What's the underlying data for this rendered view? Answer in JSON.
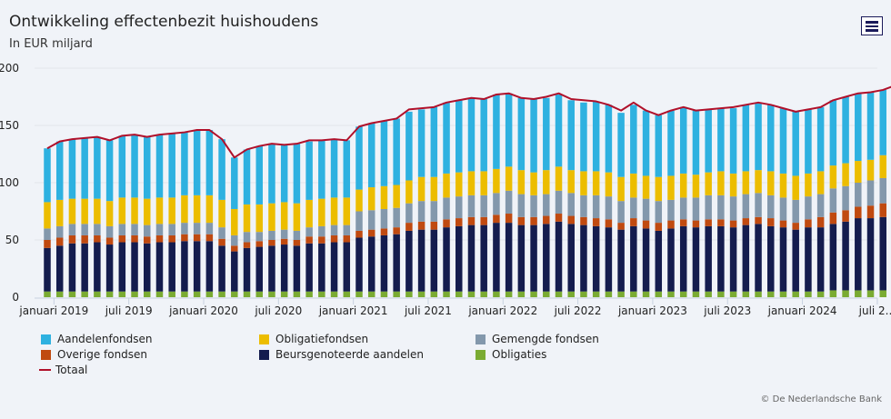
{
  "header": {
    "title": "Ontwikkeling effectenbezit huishoudens",
    "subtitle": "In EUR miljard",
    "menu_icon": "hamburger-menu-icon"
  },
  "credit": "© De Nederlandsche Bank",
  "chart_data": {
    "type": "bar",
    "stacked": true,
    "title": "Ontwikkeling effectenbezit huishoudens",
    "subtitle": "In EUR miljard",
    "xlabel": "",
    "ylabel": "",
    "ylim": [
      0,
      200
    ],
    "yticks": [
      0,
      50,
      100,
      150,
      200
    ],
    "grid": true,
    "legend_position": "bottom",
    "x_tick_labels": [
      "januari 2019",
      "juli 2019",
      "januari 2020",
      "juli 2020",
      "januari 2021",
      "juli 2021",
      "januari 2022",
      "juli 2022",
      "januari 2023",
      "juli 2023",
      "januari 2024",
      "juli 2..."
    ],
    "x_tick_index": [
      1,
      7,
      13,
      19,
      25,
      31,
      37,
      43,
      49,
      55,
      61,
      67
    ],
    "categories": [
      "2018-12",
      "2019-01",
      "2019-02",
      "2019-03",
      "2019-04",
      "2019-05",
      "2019-06",
      "2019-07",
      "2019-08",
      "2019-09",
      "2019-10",
      "2019-11",
      "2019-12",
      "2020-01",
      "2020-02",
      "2020-03",
      "2020-04",
      "2020-05",
      "2020-06",
      "2020-07",
      "2020-08",
      "2020-09",
      "2020-10",
      "2020-11",
      "2020-12",
      "2021-01",
      "2021-02",
      "2021-03",
      "2021-04",
      "2021-05",
      "2021-06",
      "2021-07",
      "2021-08",
      "2021-09",
      "2021-10",
      "2021-11",
      "2021-12",
      "2022-01",
      "2022-02",
      "2022-03",
      "2022-04",
      "2022-05",
      "2022-06",
      "2022-07",
      "2022-08",
      "2022-09",
      "2022-10",
      "2022-11",
      "2022-12",
      "2023-01",
      "2023-02",
      "2023-03",
      "2023-04",
      "2023-05",
      "2023-06",
      "2023-07",
      "2023-08",
      "2023-09",
      "2023-10",
      "2023-11",
      "2023-12",
      "2024-01",
      "2024-02",
      "2024-03",
      "2024-04",
      "2024-05",
      "2024-06",
      "2024-07",
      "2024-08"
    ],
    "series": [
      {
        "name": "Obligaties",
        "color": "#7aab32",
        "values": [
          5,
          5,
          5,
          5,
          5,
          5,
          5,
          5,
          5,
          5,
          5,
          5,
          5,
          5,
          5,
          5,
          5,
          5,
          5,
          5,
          5,
          5,
          5,
          5,
          5,
          5,
          5,
          5,
          5,
          5,
          5,
          5,
          5,
          5,
          5,
          5,
          5,
          5,
          5,
          5,
          5,
          5,
          5,
          5,
          5,
          5,
          5,
          5,
          5,
          5,
          5,
          5,
          5,
          5,
          5,
          5,
          5,
          5,
          5,
          5,
          5,
          5,
          5,
          6,
          6,
          6,
          6,
          6,
          7
        ]
      },
      {
        "name": "Beursgenoteerde aandelen",
        "color": "#141c4e",
        "values": [
          38,
          40,
          42,
          42,
          43,
          41,
          43,
          43,
          42,
          43,
          43,
          44,
          44,
          44,
          40,
          35,
          38,
          39,
          40,
          41,
          40,
          42,
          42,
          43,
          43,
          47,
          48,
          49,
          50,
          53,
          54,
          54,
          56,
          57,
          58,
          58,
          60,
          60,
          58,
          58,
          59,
          61,
          59,
          58,
          57,
          56,
          54,
          57,
          55,
          53,
          55,
          57,
          56,
          57,
          57,
          56,
          58,
          59,
          57,
          56,
          54,
          56,
          56,
          58,
          60,
          63,
          63,
          64,
          64
        ]
      },
      {
        "name": "Overige fondsen",
        "color": "#c04a10",
        "values": [
          7,
          7,
          7,
          7,
          6,
          6,
          6,
          6,
          6,
          6,
          6,
          6,
          6,
          6,
          6,
          5,
          5,
          5,
          5,
          5,
          5,
          6,
          6,
          6,
          6,
          6,
          6,
          6,
          6,
          7,
          7,
          7,
          7,
          7,
          7,
          7,
          7,
          8,
          7,
          7,
          7,
          7,
          7,
          7,
          7,
          7,
          6,
          7,
          7,
          7,
          7,
          6,
          6,
          6,
          6,
          6,
          6,
          6,
          7,
          6,
          6,
          7,
          9,
          10,
          10,
          10,
          11,
          12,
          12
        ]
      },
      {
        "name": "Gemengde fondsen",
        "color": "#8398ac",
        "values": [
          10,
          10,
          10,
          10,
          10,
          10,
          10,
          10,
          10,
          10,
          10,
          10,
          10,
          10,
          10,
          9,
          9,
          8,
          8,
          8,
          8,
          8,
          9,
          9,
          9,
          17,
          17,
          17,
          17,
          17,
          18,
          18,
          19,
          19,
          19,
          19,
          19,
          20,
          20,
          19,
          19,
          20,
          20,
          19,
          20,
          20,
          19,
          18,
          19,
          19,
          18,
          19,
          20,
          21,
          21,
          21,
          21,
          21,
          20,
          20,
          20,
          20,
          20,
          21,
          21,
          21,
          22,
          22,
          22
        ]
      },
      {
        "name": "Obligatiefondsen",
        "color": "#ecbd00",
        "values": [
          23,
          23,
          22,
          22,
          22,
          22,
          23,
          23,
          23,
          23,
          23,
          24,
          24,
          24,
          24,
          23,
          24,
          24,
          24,
          24,
          24,
          24,
          24,
          24,
          24,
          19,
          20,
          20,
          20,
          20,
          21,
          21,
          21,
          21,
          21,
          21,
          21,
          21,
          21,
          20,
          21,
          21,
          20,
          21,
          21,
          21,
          21,
          21,
          20,
          21,
          21,
          21,
          20,
          20,
          21,
          20,
          20,
          20,
          21,
          21,
          21,
          20,
          20,
          20,
          20,
          19,
          18,
          20,
          20
        ]
      },
      {
        "name": "Aandelenfondsen",
        "color": "#2eb1e0",
        "values": [
          47,
          51,
          52,
          53,
          54,
          53,
          54,
          55,
          54,
          55,
          56,
          55,
          57,
          57,
          53,
          45,
          48,
          51,
          52,
          50,
          52,
          51,
          51,
          51,
          50,
          55,
          56,
          57,
          58,
          60,
          59,
          61,
          62,
          63,
          64,
          63,
          65,
          64,
          63,
          64,
          63,
          63,
          61,
          60,
          61,
          59,
          56,
          60,
          57,
          54,
          57,
          58,
          56,
          55,
          55,
          57,
          58,
          59,
          58,
          57,
          56,
          56,
          56,
          57,
          58,
          59,
          59,
          57,
          60
        ]
      },
      {
        "name": "Totaal",
        "type": "line",
        "color": "#b0102a",
        "values": [
          130,
          136,
          138,
          139,
          140,
          137,
          141,
          142,
          140,
          142,
          143,
          144,
          146,
          146,
          138,
          122,
          129,
          132,
          134,
          133,
          134,
          137,
          137,
          138,
          137,
          149,
          152,
          154,
          156,
          164,
          165,
          166,
          170,
          172,
          174,
          173,
          177,
          178,
          174,
          173,
          175,
          178,
          173,
          172,
          171,
          168,
          163,
          170,
          163,
          159,
          163,
          166,
          163,
          164,
          165,
          166,
          168,
          170,
          168,
          165,
          162,
          164,
          166,
          172,
          175,
          178,
          179,
          181,
          185
        ]
      }
    ]
  }
}
